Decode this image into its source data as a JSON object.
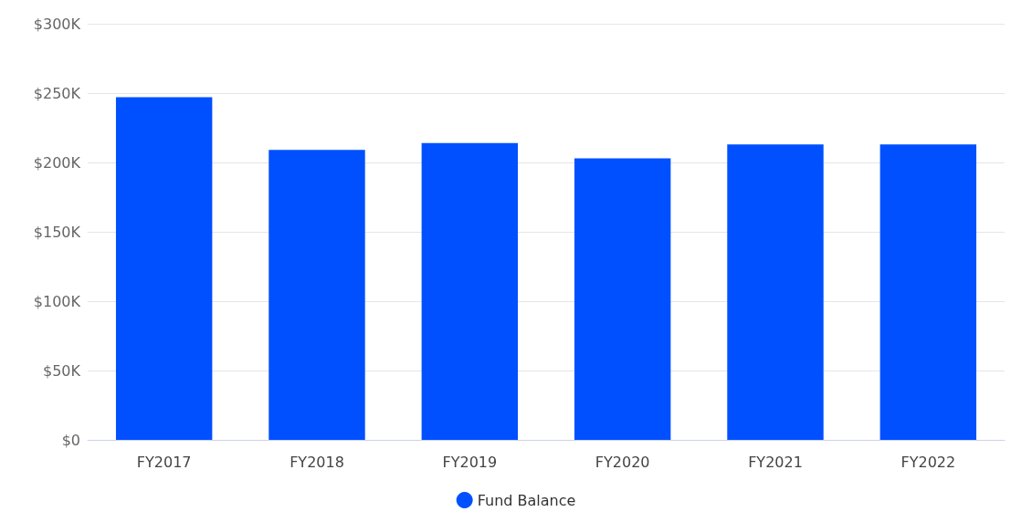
{
  "chart_data": {
    "type": "bar",
    "categories": [
      "FY2017",
      "FY2018",
      "FY2019",
      "FY2020",
      "FY2021",
      "FY2022"
    ],
    "series": [
      {
        "name": "Fund Balance",
        "color": "#0050ff",
        "values": [
          247,
          209,
          214,
          203,
          213,
          213
        ]
      }
    ],
    "ylim": [
      0,
      300
    ],
    "yticks": [
      {
        "value": 0,
        "label": "$0"
      },
      {
        "value": 50,
        "label": "$50K"
      },
      {
        "value": 100,
        "label": "$100K"
      },
      {
        "value": 150,
        "label": "$150K"
      },
      {
        "value": 200,
        "label": "$200K"
      },
      {
        "value": 250,
        "label": "$250K"
      },
      {
        "value": 300,
        "label": "$300K"
      }
    ],
    "grid": "y",
    "legend": "bottom"
  }
}
